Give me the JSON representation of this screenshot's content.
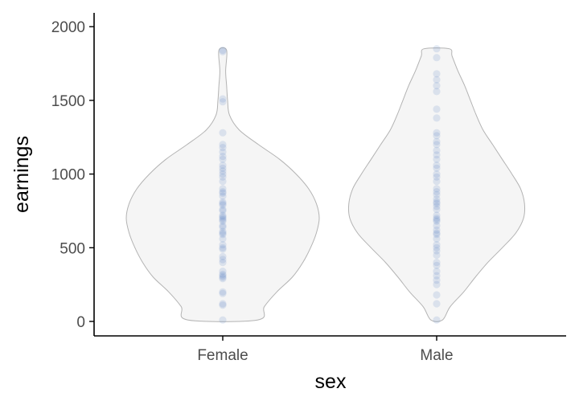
{
  "chart_data": {
    "type": "violin",
    "xlabel": "sex",
    "ylabel": "earnings",
    "categories": [
      "Female",
      "Male"
    ],
    "ylim": [
      -100,
      2100
    ],
    "yticks": [
      0,
      500,
      1000,
      1500,
      2000
    ],
    "y_tick_labels": [
      "0",
      "500",
      "1000",
      "1500",
      "2000"
    ],
    "grid": false,
    "legend": "none",
    "colors": {
      "violin_fill": "#f5f5f5",
      "violin_stroke": "#b3b3b3",
      "point": "#4f7fbf",
      "axis": "#000000"
    },
    "groups": [
      {
        "name": "Female",
        "range": [
          10,
          1840
        ],
        "density": [
          [
            10,
            0.36
          ],
          [
            100,
            0.43
          ],
          [
            200,
            0.56
          ],
          [
            300,
            0.72
          ],
          [
            400,
            0.83
          ],
          [
            500,
            0.91
          ],
          [
            600,
            0.97
          ],
          [
            700,
            1.0
          ],
          [
            800,
            0.97
          ],
          [
            900,
            0.89
          ],
          [
            1000,
            0.76
          ],
          [
            1100,
            0.59
          ],
          [
            1200,
            0.37
          ],
          [
            1300,
            0.17
          ],
          [
            1400,
            0.07
          ],
          [
            1500,
            0.05
          ],
          [
            1600,
            0.04
          ],
          [
            1700,
            0.03
          ],
          [
            1840,
            0.04
          ]
        ],
        "points": [
          10,
          110,
          120,
          190,
          200,
          290,
          300,
          310,
          320,
          340,
          400,
          420,
          440,
          490,
          500,
          520,
          560,
          590,
          600,
          610,
          640,
          650,
          680,
          690,
          700,
          710,
          720,
          750,
          760,
          790,
          800,
          810,
          850,
          870,
          880,
          900,
          950,
          980,
          1000,
          1020,
          1040,
          1060,
          1100,
          1120,
          1150,
          1180,
          1200,
          1280,
          1490,
          1510,
          1830,
          1840
        ]
      },
      {
        "name": "Male",
        "range": [
          10,
          1850
        ],
        "density": [
          [
            10,
            0.06
          ],
          [
            100,
            0.14
          ],
          [
            200,
            0.28
          ],
          [
            300,
            0.4
          ],
          [
            400,
            0.53
          ],
          [
            500,
            0.68
          ],
          [
            600,
            0.82
          ],
          [
            700,
            0.9
          ],
          [
            800,
            0.91
          ],
          [
            900,
            0.87
          ],
          [
            1000,
            0.78
          ],
          [
            1100,
            0.68
          ],
          [
            1200,
            0.58
          ],
          [
            1300,
            0.48
          ],
          [
            1400,
            0.41
          ],
          [
            1500,
            0.35
          ],
          [
            1600,
            0.29
          ],
          [
            1700,
            0.22
          ],
          [
            1800,
            0.16
          ],
          [
            1850,
            0.13
          ]
        ],
        "points": [
          10,
          120,
          180,
          250,
          280,
          310,
          340,
          380,
          400,
          450,
          480,
          500,
          520,
          560,
          590,
          600,
          620,
          650,
          680,
          690,
          700,
          720,
          760,
          780,
          800,
          810,
          830,
          860,
          880,
          900,
          950,
          980,
          1000,
          1040,
          1060,
          1100,
          1130,
          1160,
          1200,
          1220,
          1260,
          1280,
          1380,
          1440,
          1560,
          1600,
          1640,
          1680,
          1790,
          1850
        ]
      }
    ]
  }
}
